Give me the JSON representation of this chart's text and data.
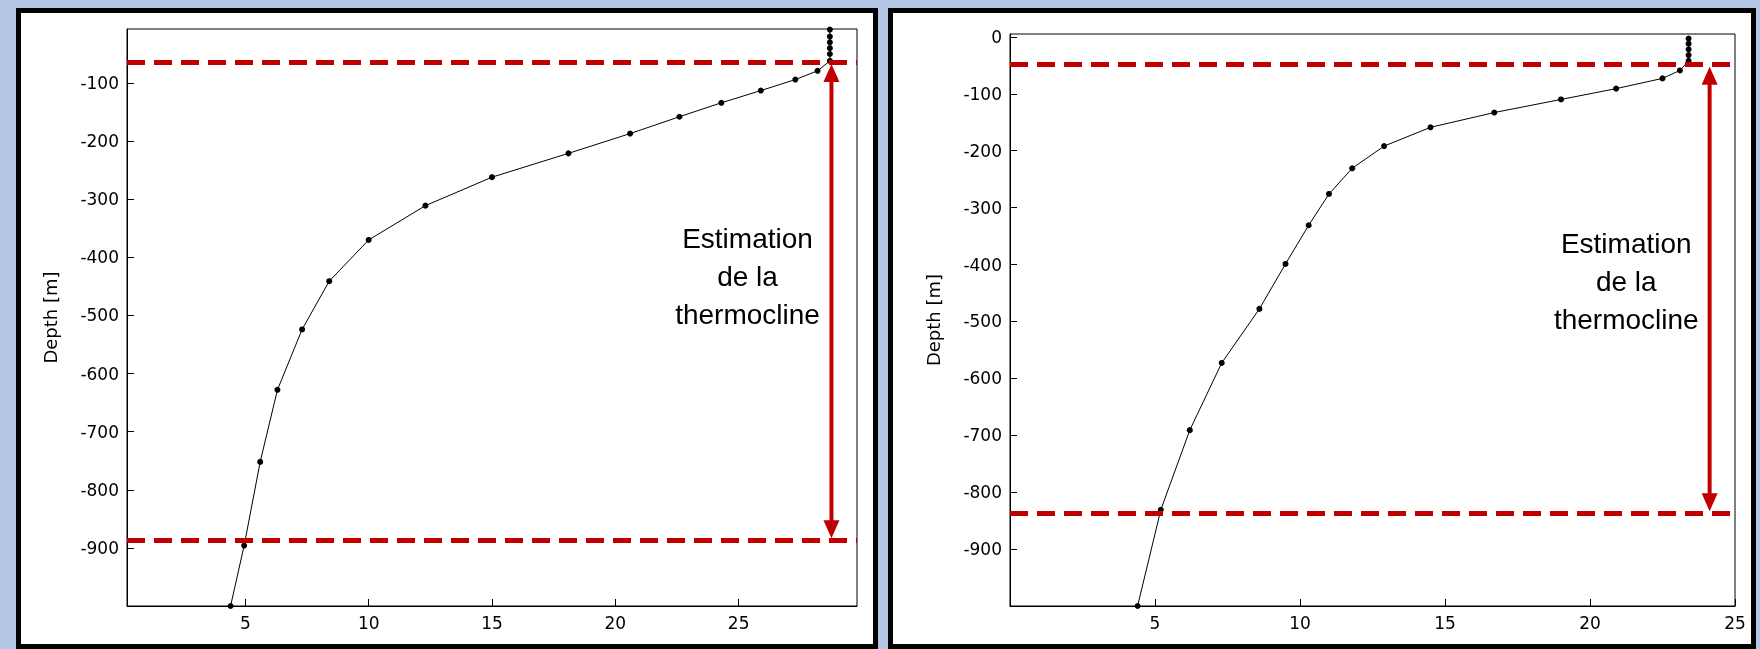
{
  "chart_data": [
    {
      "type": "line",
      "ylabel": "Depth [m]",
      "xlim": [
        0.2,
        29.8
      ],
      "xticks": [
        5,
        10,
        15,
        20,
        25
      ],
      "ylim": [
        -1000,
        -7
      ],
      "yticks": [
        -100,
        -200,
        -300,
        -400,
        -500,
        -600,
        -700,
        -800,
        -900
      ],
      "grid": false,
      "marker": "circle",
      "line_style": "solid",
      "series": [
        {
          "color": "#000000",
          "x": [
            28.7,
            28.7,
            28.7,
            28.7,
            28.7,
            28.7,
            28.2,
            27.3,
            25.9,
            24.3,
            22.6,
            20.6,
            18.1,
            15.0,
            12.3,
            10.0,
            8.4,
            7.3,
            6.3,
            5.6,
            4.95,
            4.4
          ],
          "values": [
            -8,
            -20,
            -30,
            -40,
            -50,
            -62,
            -79,
            -94,
            -113,
            -134,
            -158,
            -187,
            -221,
            -262,
            -311,
            -370,
            -441,
            -524,
            -628,
            -752,
            -896,
            -1000
          ]
        }
      ],
      "ref_lines": [
        {
          "axis": "y",
          "value": -64,
          "color": "#c00000",
          "line_style": "dashed"
        },
        {
          "axis": "y",
          "value": -887,
          "color": "#c00000",
          "line_style": "dashed"
        }
      ],
      "annotations": [
        "Estimation\nde la\nthermocline"
      ]
    },
    {
      "type": "line",
      "ylabel": "Depth [m]",
      "xlim": [
        0,
        25
      ],
      "xticks": [
        5,
        10,
        15,
        20,
        25
      ],
      "ylim": [
        -1000,
        5
      ],
      "yticks": [
        0,
        -100,
        -200,
        -300,
        -400,
        -500,
        -600,
        -700,
        -800,
        -900
      ],
      "grid": false,
      "marker": "circle",
      "line_style": "solid",
      "series": [
        {
          "color": "#000000",
          "x": [
            23.4,
            23.4,
            23.4,
            23.4,
            23.4,
            23.1,
            22.5,
            20.9,
            19.0,
            16.7,
            14.5,
            12.9,
            11.8,
            11.0,
            10.3,
            9.5,
            8.6,
            7.3,
            6.2,
            5.2,
            4.4
          ],
          "values": [
            -3,
            -12,
            -22,
            -32,
            -42,
            -59,
            -73,
            -91,
            -110,
            -133,
            -159,
            -192,
            -231,
            -276,
            -331,
            -399,
            -478,
            -573,
            -691,
            -831,
            -1000
          ]
        }
      ],
      "ref_lines": [
        {
          "axis": "y",
          "value": -49,
          "color": "#c00000",
          "line_style": "dashed"
        },
        {
          "axis": "y",
          "value": -837,
          "color": "#c00000",
          "line_style": "dashed"
        }
      ],
      "annotations": [
        "Estimation\nde la\nthermocline"
      ]
    }
  ]
}
